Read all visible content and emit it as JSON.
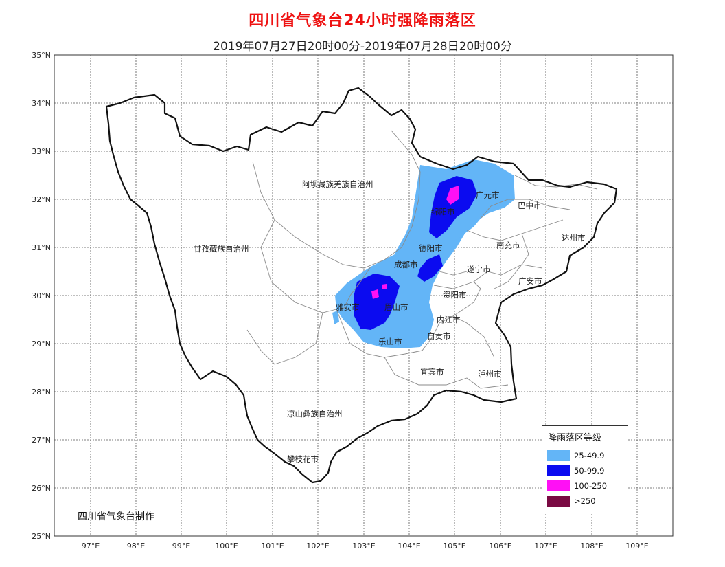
{
  "title": "四川省气象台24小时强降雨落区",
  "subtitle": "2019年07月27日20时00分-2019年07月28日20时00分",
  "credit": "四川省气象台制作",
  "map": {
    "lat_labels": [
      "35°N",
      "34°N",
      "33°N",
      "32°N",
      "31°N",
      "30°N",
      "29°N",
      "28°N",
      "27°N",
      "26°N",
      "25°N"
    ],
    "lon_labels": [
      "97°E",
      "98°E",
      "99°E",
      "100°E",
      "101°E",
      "102°E",
      "103°E",
      "104°E",
      "105°E",
      "106°E",
      "107°E",
      "108°E",
      "109°E"
    ],
    "cities": [
      {
        "name": "阿坝藏族羌族自治州"
      },
      {
        "name": "甘孜藏族自治州"
      },
      {
        "name": "凉山彝族自治州"
      },
      {
        "name": "攀枝花市"
      },
      {
        "name": "广元市"
      },
      {
        "name": "绵阳市"
      },
      {
        "name": "巴中市"
      },
      {
        "name": "达州市"
      },
      {
        "name": "南充市"
      },
      {
        "name": "德阳市"
      },
      {
        "name": "成都市"
      },
      {
        "name": "遂宁市"
      },
      {
        "name": "广安市"
      },
      {
        "name": "雅安市"
      },
      {
        "name": "眉山市"
      },
      {
        "name": "资阳市"
      },
      {
        "name": "内江市"
      },
      {
        "name": "自贡市"
      },
      {
        "name": "乐山市"
      },
      {
        "name": "宜宾市"
      },
      {
        "name": "泸州市"
      }
    ]
  },
  "legend": {
    "title": "降雨落区等级",
    "items": [
      {
        "label": "25-49.9",
        "color": "#63b5f7"
      },
      {
        "label": "50-99.9",
        "color": "#0b0bf0"
      },
      {
        "label": "100-250",
        "color": "#ff10f5"
      },
      {
        "label": ">250",
        "color": "#7a0a43"
      }
    ]
  }
}
